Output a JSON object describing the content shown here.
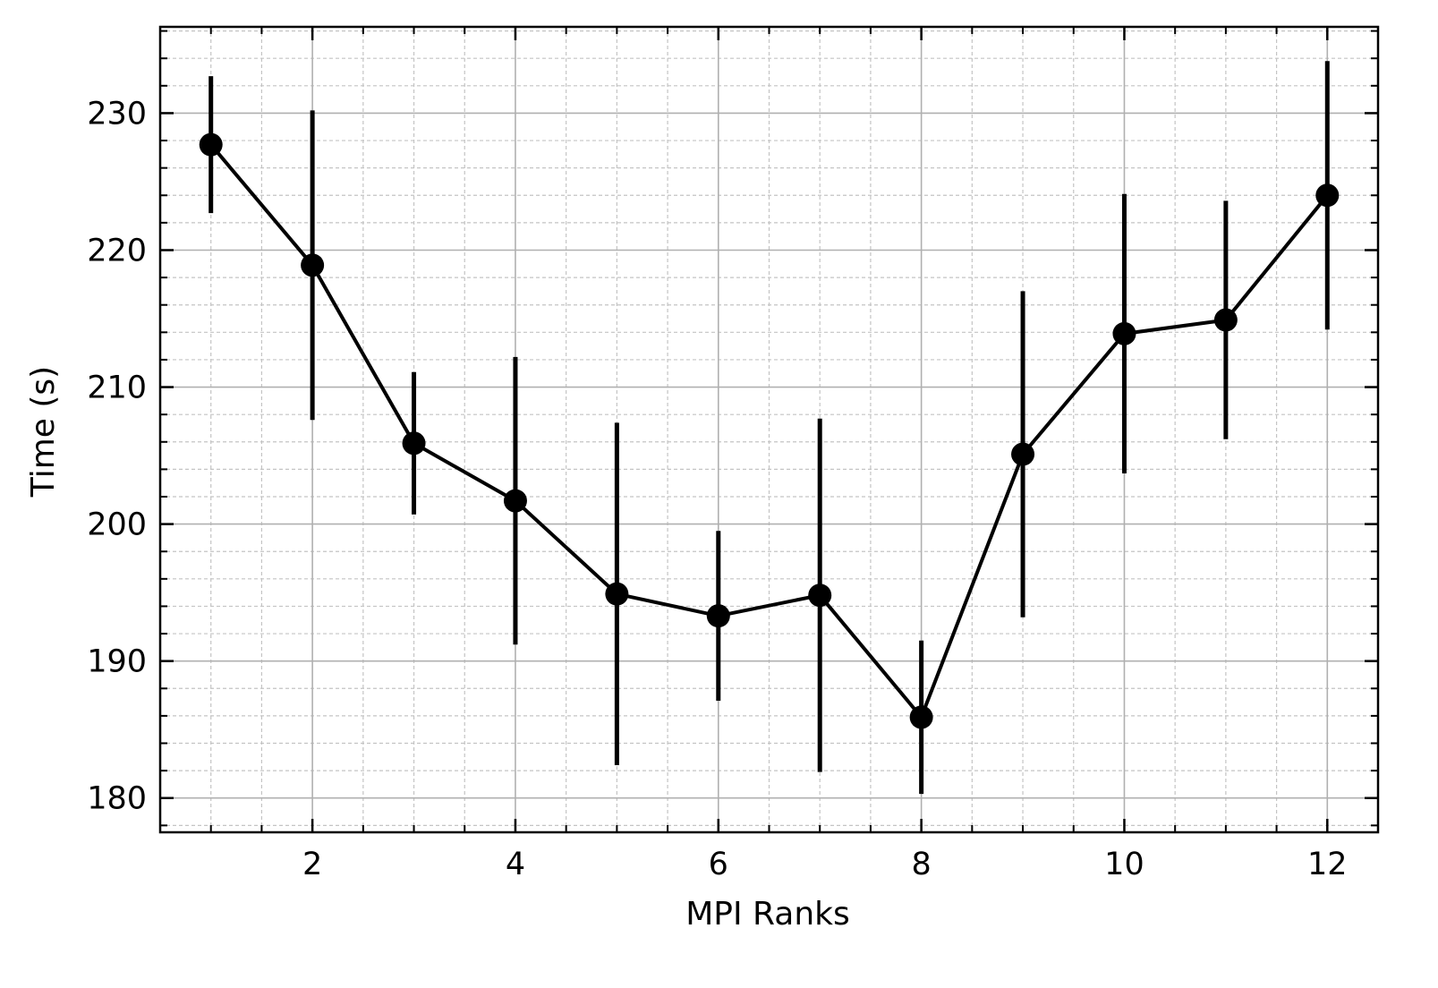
{
  "chart_data": {
    "type": "line",
    "title": "",
    "xlabel": "MPI Ranks",
    "ylabel": "Time (s)",
    "xlim": [
      0.5,
      12.5
    ],
    "ylim": [
      177.5,
      236.3
    ],
    "x_ticks": [
      2,
      4,
      6,
      8,
      10,
      12
    ],
    "x_tick_labels": [
      "2",
      "4",
      "6",
      "8",
      "10",
      "12"
    ],
    "y_ticks": [
      180,
      190,
      200,
      210,
      220,
      230
    ],
    "y_tick_labels": [
      "180",
      "190",
      "200",
      "210",
      "220",
      "230"
    ],
    "grid": true,
    "series": [
      {
        "x": [
          1,
          2,
          3,
          4,
          5,
          6,
          7,
          8,
          9,
          10,
          11,
          12
        ],
        "values": [
          227.7,
          218.9,
          205.9,
          201.7,
          194.9,
          193.3,
          194.8,
          185.9,
          205.1,
          213.9,
          214.9,
          224.0
        ],
        "error": [
          5.0,
          11.3,
          5.2,
          10.5,
          12.5,
          6.2,
          12.9,
          5.6,
          11.9,
          10.2,
          8.7,
          9.8
        ],
        "color": "#000000",
        "marker": "circle"
      }
    ]
  }
}
